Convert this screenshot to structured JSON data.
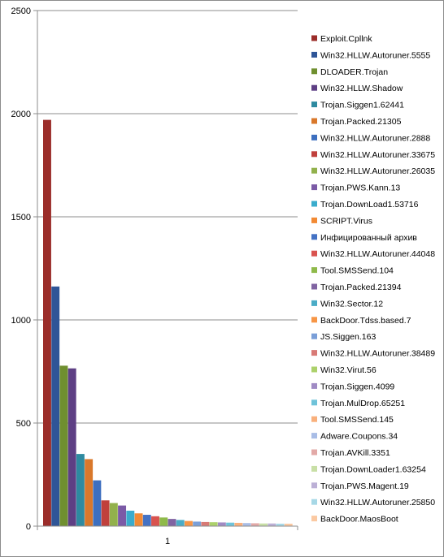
{
  "chart_data": {
    "type": "bar",
    "categories": [
      "1"
    ],
    "ylim": [
      0,
      2500
    ],
    "yticks": [
      0,
      500,
      1000,
      1500,
      2000,
      2500
    ],
    "grid": true,
    "legend_position": "right",
    "series": [
      {
        "name": "Exploit.Cpllnk",
        "values": [
          1970
        ],
        "color": "#9b2d2a"
      },
      {
        "name": "Win32.HLLW.Autoruner.5555",
        "values": [
          1162
        ],
        "color": "#2f5597"
      },
      {
        "name": "DLOADER.Trojan",
        "values": [
          778
        ],
        "color": "#6f8f2f"
      },
      {
        "name": "Win32.HLLW.Shadow",
        "values": [
          765
        ],
        "color": "#5e3f84"
      },
      {
        "name": "Trojan.Siggen1.62441",
        "values": [
          350
        ],
        "color": "#2e8aa0"
      },
      {
        "name": "Trojan.Packed.21305",
        "values": [
          325
        ],
        "color": "#d9782b"
      },
      {
        "name": "Win32.HLLW.Autoruner.2888",
        "values": [
          222
        ],
        "color": "#3d6fbf"
      },
      {
        "name": "Win32.HLLW.Autoruner.33675",
        "values": [
          125
        ],
        "color": "#c0403c"
      },
      {
        "name": "Win32.HLLW.Autoruner.26035",
        "values": [
          112
        ],
        "color": "#92b14c"
      },
      {
        "name": "Trojan.PWS.Kann.13",
        "values": [
          100
        ],
        "color": "#7b5aa6"
      },
      {
        "name": "Trojan.DownLoad1.53716",
        "values": [
          75
        ],
        "color": "#3aaccc"
      },
      {
        "name": "SCRIPT.Virus",
        "values": [
          62
        ],
        "color": "#f28a34"
      },
      {
        "name": "Инфицированный архив",
        "values": [
          55
        ],
        "color": "#4472c4"
      },
      {
        "name": "Win32.HLLW.Autoruner.44048",
        "values": [
          48
        ],
        "color": "#d9534f"
      },
      {
        "name": "Tool.SMSSend.104",
        "values": [
          42
        ],
        "color": "#8fba4a"
      },
      {
        "name": "Trojan.Packed.21394",
        "values": [
          35
        ],
        "color": "#8064a2"
      },
      {
        "name": "Win32.Sector.12",
        "values": [
          30
        ],
        "color": "#4bacc6"
      },
      {
        "name": "BackDoor.Tdss.based.7",
        "values": [
          25
        ],
        "color": "#f79646"
      },
      {
        "name": "JS.Siggen.163",
        "values": [
          22
        ],
        "color": "#7a9fd8"
      },
      {
        "name": "Win32.HLLW.Autoruner.38489",
        "values": [
          20
        ],
        "color": "#d87a76"
      },
      {
        "name": "Win32.Virut.56",
        "values": [
          19
        ],
        "color": "#acd16b"
      },
      {
        "name": "Trojan.Siggen.4099",
        "values": [
          18
        ],
        "color": "#a08bc4"
      },
      {
        "name": "Trojan.MulDrop.65251",
        "values": [
          17
        ],
        "color": "#6fc3d9"
      },
      {
        "name": "Tool.SMSSend.145",
        "values": [
          16
        ],
        "color": "#f9b07c"
      },
      {
        "name": "Adware.Coupons.34",
        "values": [
          15
        ],
        "color": "#a9bde6"
      },
      {
        "name": "Trojan.AVKill.3351",
        "values": [
          14
        ],
        "color": "#e2a9a7"
      },
      {
        "name": "Trojan.DownLoader1.63254",
        "values": [
          13
        ],
        "color": "#c8dfa6"
      },
      {
        "name": "Trojan.PWS.Magent.19",
        "values": [
          13
        ],
        "color": "#bcb0d6"
      },
      {
        "name": "Win32.HLLW.Autoruner.25850",
        "values": [
          12
        ],
        "color": "#a7d8e6"
      },
      {
        "name": "BackDoor.MaosBoot",
        "values": [
          12
        ],
        "color": "#fbc9a2"
      }
    ]
  }
}
